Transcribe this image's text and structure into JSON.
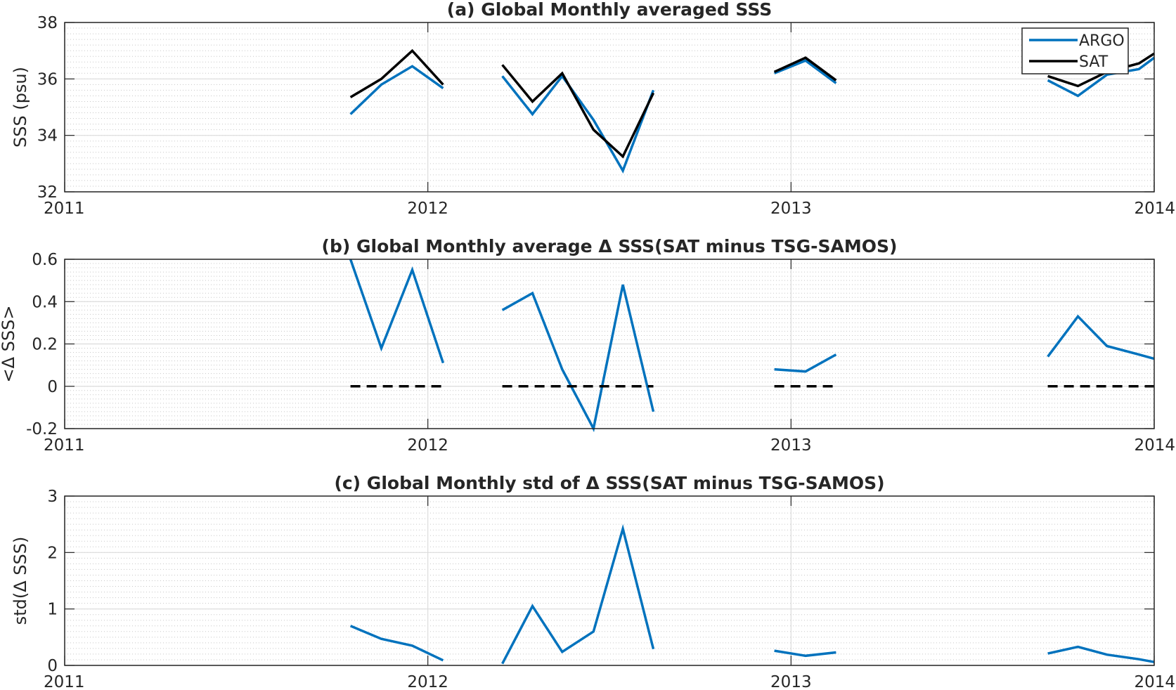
{
  "colors": {
    "argo": "#0072BD",
    "sat": "#000000",
    "grid": "#dcdcdc",
    "minor_grid": "#c8c8c8",
    "axes": "#262626"
  },
  "legend": {
    "entries": [
      "ARGO",
      "SAT"
    ],
    "placement": "top-right"
  },
  "chart_data": [
    {
      "type": "line",
      "title": "(a) Global Monthly averaged SSS",
      "ylabel": "SSS (psu)",
      "xlabel": "",
      "xlim": [
        2011,
        2014
      ],
      "ylim": [
        32,
        38
      ],
      "xticks": [
        "2011",
        "2012",
        "2013",
        "2014"
      ],
      "yticks": [
        "32",
        "34",
        "36",
        "38"
      ],
      "grid": true,
      "minor_grid": true,
      "legend": {
        "entries": [
          "ARGO",
          "SAT"
        ],
        "placement": "top-right"
      },
      "series": [
        {
          "name": "ARGO",
          "color": "#0072BD",
          "segments": [
            [
              [
                2011.787,
                34.75
              ],
              [
                2011.872,
                35.8
              ],
              [
                2011.957,
                36.45
              ],
              [
                2012.042,
                35.67
              ]
            ],
            [
              [
                2012.205,
                36.1
              ],
              [
                2012.288,
                34.75
              ],
              [
                2012.37,
                36.1
              ],
              [
                2012.456,
                34.55
              ],
              [
                2012.537,
                32.75
              ],
              [
                2012.621,
                35.6
              ]
            ],
            [
              [
                2012.954,
                36.2
              ],
              [
                2013.04,
                36.65
              ],
              [
                2013.124,
                35.85
              ]
            ],
            [
              [
                2013.707,
                35.95
              ],
              [
                2013.79,
                35.4
              ],
              [
                2013.87,
                36.15
              ],
              [
                2013.958,
                36.35
              ],
              [
                2014.0,
                36.75
              ]
            ]
          ]
        },
        {
          "name": "SAT",
          "color": "#000000",
          "segments": [
            [
              [
                2011.787,
                35.35
              ],
              [
                2011.872,
                36.0
              ],
              [
                2011.957,
                37.0
              ],
              [
                2012.042,
                35.8
              ]
            ],
            [
              [
                2012.205,
                36.5
              ],
              [
                2012.288,
                35.2
              ],
              [
                2012.37,
                36.2
              ],
              [
                2012.456,
                34.2
              ],
              [
                2012.537,
                33.25
              ],
              [
                2012.621,
                35.5
              ]
            ],
            [
              [
                2012.954,
                36.25
              ],
              [
                2013.04,
                36.75
              ],
              [
                2013.124,
                35.95
              ]
            ],
            [
              [
                2013.707,
                36.1
              ],
              [
                2013.79,
                35.75
              ],
              [
                2013.87,
                36.25
              ],
              [
                2013.958,
                36.55
              ],
              [
                2014.0,
                36.9
              ]
            ]
          ]
        }
      ]
    },
    {
      "type": "line",
      "title": "(b) Global Monthly average Δ SSS(SAT minus TSG-SAMOS)",
      "ylabel": "<Δ SSS>",
      "xlabel": "",
      "xlim": [
        2011,
        2014
      ],
      "ylim": [
        -0.2,
        0.6
      ],
      "xticks": [
        "2011",
        "2012",
        "2013",
        "2014"
      ],
      "yticks": [
        "-0.2",
        "0",
        "0.2",
        "0.4",
        "0.6"
      ],
      "grid": true,
      "minor_grid": true,
      "series": [
        {
          "color": "#0072BD",
          "segments": [
            [
              [
                2011.787,
                0.6
              ],
              [
                2011.872,
                0.18
              ],
              [
                2011.957,
                0.55
              ],
              [
                2012.042,
                0.11
              ]
            ],
            [
              [
                2012.205,
                0.36
              ],
              [
                2012.288,
                0.44
              ],
              [
                2012.37,
                0.08
              ],
              [
                2012.456,
                -0.2
              ],
              [
                2012.537,
                0.48
              ],
              [
                2012.621,
                -0.12
              ]
            ],
            [
              [
                2012.954,
                0.08
              ],
              [
                2013.04,
                0.07
              ],
              [
                2013.124,
                0.15
              ]
            ],
            [
              [
                2013.707,
                0.14
              ],
              [
                2013.79,
                0.33
              ],
              [
                2013.87,
                0.19
              ],
              [
                2013.958,
                0.15
              ],
              [
                2014.0,
                0.13
              ]
            ]
          ]
        },
        {
          "color": "#000000",
          "dashed": true,
          "segments": [
            [
              [
                2011.787,
                0
              ],
              [
                2012.042,
                0
              ]
            ],
            [
              [
                2012.205,
                0
              ],
              [
                2012.621,
                0
              ]
            ],
            [
              [
                2012.954,
                0
              ],
              [
                2013.124,
                0
              ]
            ],
            [
              [
                2013.707,
                0
              ],
              [
                2014.0,
                0
              ]
            ]
          ]
        }
      ]
    },
    {
      "type": "line",
      "title": "(c) Global Monthly std of Δ SSS(SAT minus TSG-SAMOS)",
      "ylabel": "std(Δ SSS)",
      "xlabel": "",
      "xlim": [
        2011,
        2014
      ],
      "ylim": [
        0,
        3
      ],
      "xticks": [
        "2011",
        "2012",
        "2013",
        "2014"
      ],
      "yticks": [
        "0",
        "1",
        "2",
        "3"
      ],
      "grid": true,
      "minor_grid": true,
      "series": [
        {
          "color": "#0072BD",
          "segments": [
            [
              [
                2011.787,
                0.7
              ],
              [
                2011.872,
                0.47
              ],
              [
                2011.957,
                0.35
              ],
              [
                2012.042,
                0.09
              ]
            ],
            [
              [
                2012.205,
                0.03
              ],
              [
                2012.288,
                1.05
              ],
              [
                2012.37,
                0.24
              ],
              [
                2012.456,
                0.6
              ],
              [
                2012.537,
                2.42
              ],
              [
                2012.621,
                0.29
              ]
            ],
            [
              [
                2012.954,
                0.26
              ],
              [
                2013.04,
                0.17
              ],
              [
                2013.124,
                0.23
              ]
            ],
            [
              [
                2013.707,
                0.21
              ],
              [
                2013.79,
                0.33
              ],
              [
                2013.87,
                0.19
              ],
              [
                2013.958,
                0.11
              ],
              [
                2014.0,
                0.06
              ]
            ]
          ]
        }
      ]
    }
  ]
}
